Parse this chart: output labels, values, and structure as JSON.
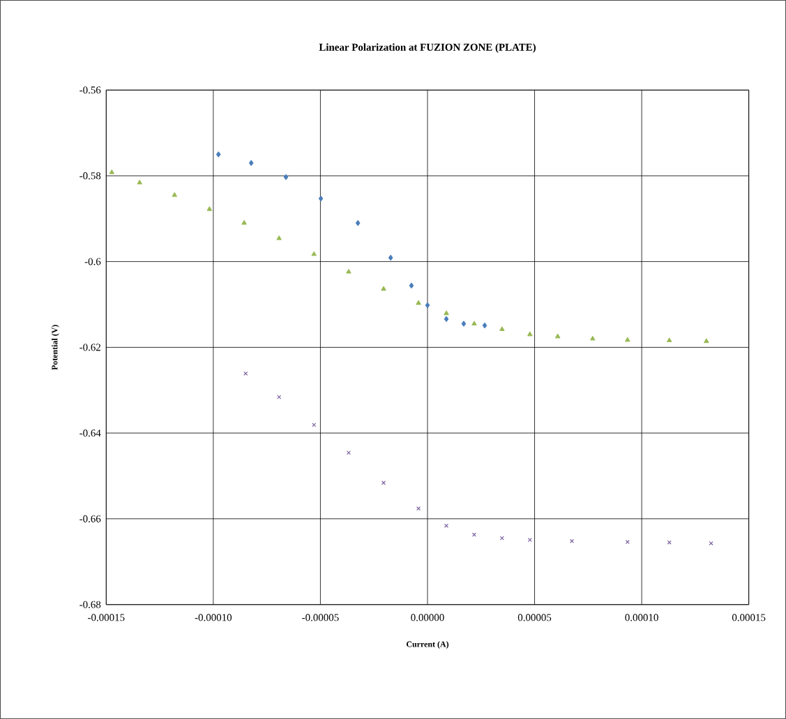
{
  "chart_data": {
    "type": "scatter",
    "title": "Linear Polarization at FUZION ZONE (PLATE)",
    "xlabel": "Current (A)",
    "ylabel": "Potential (V)",
    "xlim": [
      -0.00015,
      0.00015
    ],
    "ylim": [
      -0.68,
      -0.56
    ],
    "xticks": [
      {
        "value": -0.00015,
        "label": "-0.00015"
      },
      {
        "value": -0.0001,
        "label": "-0.00010"
      },
      {
        "value": -5e-05,
        "label": "-0.00005"
      },
      {
        "value": 0,
        "label": "0.00000"
      },
      {
        "value": 5e-05,
        "label": "0.00005"
      },
      {
        "value": 0.0001,
        "label": "0.00010"
      },
      {
        "value": 0.00015,
        "label": "0.00015"
      }
    ],
    "yticks": [
      -0.56,
      -0.58,
      -0.6,
      -0.62,
      -0.64,
      -0.66,
      -0.68
    ],
    "grid": true,
    "series": [
      {
        "color": "#4a7ebb",
        "marker": "diamond",
        "x": [
          -9.76e-05,
          -8.23e-05,
          -6.61e-05,
          -4.98e-05,
          -3.25e-05,
          -1.72e-05,
          -7.5e-06,
          0,
          8.8e-06,
          1.69e-05,
          2.67e-05
        ],
        "values": [
          -0.575,
          -0.577,
          -0.5803,
          -0.5853,
          -0.591,
          -0.5991,
          -0.6056,
          -0.6102,
          -0.6134,
          -0.6145,
          -0.6149
        ]
      },
      {
        "color": "#98b954",
        "marker": "triangle",
        "x": [
          -0.0001474,
          -0.0001344,
          -0.0001181,
          -0.0001018,
          -8.56e-05,
          -6.93e-05,
          -5.3e-05,
          -3.68e-05,
          -2.05e-05,
          -4.2e-06,
          8.8e-06,
          2.18e-05,
          3.48e-05,
          4.78e-05,
          6.08e-05,
          7.71e-05,
          9.34e-05,
          0.0001129,
          0.0001302
        ],
        "values": [
          -0.5792,
          -0.5816,
          -0.5845,
          -0.5878,
          -0.591,
          -0.5946,
          -0.5983,
          -0.6024,
          -0.6064,
          -0.6097,
          -0.6121,
          -0.6145,
          -0.6158,
          -0.617,
          -0.6175,
          -0.618,
          -0.6183,
          -0.6184,
          -0.6186
        ]
      },
      {
        "color": "#7d60a0",
        "marker": "cross",
        "x": [
          -8.49e-05,
          -6.93e-05,
          -5.3e-05,
          -3.68e-05,
          -2.05e-05,
          -4.2e-06,
          8.8e-06,
          2.18e-05,
          3.48e-05,
          4.78e-05,
          6.74e-05,
          9.34e-05,
          0.0001129,
          0.0001324
        ],
        "values": [
          -0.6261,
          -0.6316,
          -0.6381,
          -0.6446,
          -0.6516,
          -0.6576,
          -0.6616,
          -0.6637,
          -0.6645,
          -0.6649,
          -0.6652,
          -0.6654,
          -0.6655,
          -0.6657
        ]
      }
    ]
  }
}
